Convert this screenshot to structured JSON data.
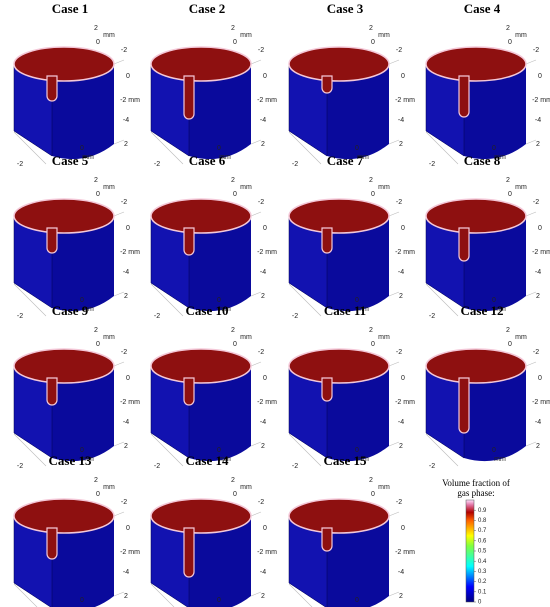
{
  "panels": [
    {
      "title": "Case 1"
    },
    {
      "title": "Case 2"
    },
    {
      "title": "Case 3"
    },
    {
      "title": "Case 4"
    },
    {
      "title": "Case 5"
    },
    {
      "title": "Case 6"
    },
    {
      "title": "Case 7"
    },
    {
      "title": "Case 8"
    },
    {
      "title": "Case 9"
    },
    {
      "title": "Case 10"
    },
    {
      "title": "Case 11"
    },
    {
      "title": "Case 12"
    },
    {
      "title": "Case 13"
    },
    {
      "title": "Case 14"
    },
    {
      "title": "Case 15"
    }
  ],
  "axis_labels": [
    "2",
    "mm",
    "0",
    "-2",
    "0",
    "-2 mm",
    "-4",
    "2",
    "0",
    "mm",
    "-2"
  ],
  "colorbar": {
    "title": "Volume fraction of gas phase:",
    "lim": [
      0,
      1
    ],
    "ticks": [
      0,
      0.1,
      0.2,
      0.3,
      0.4,
      0.5,
      0.6,
      0.7,
      0.8,
      0.9
    ]
  }
}
